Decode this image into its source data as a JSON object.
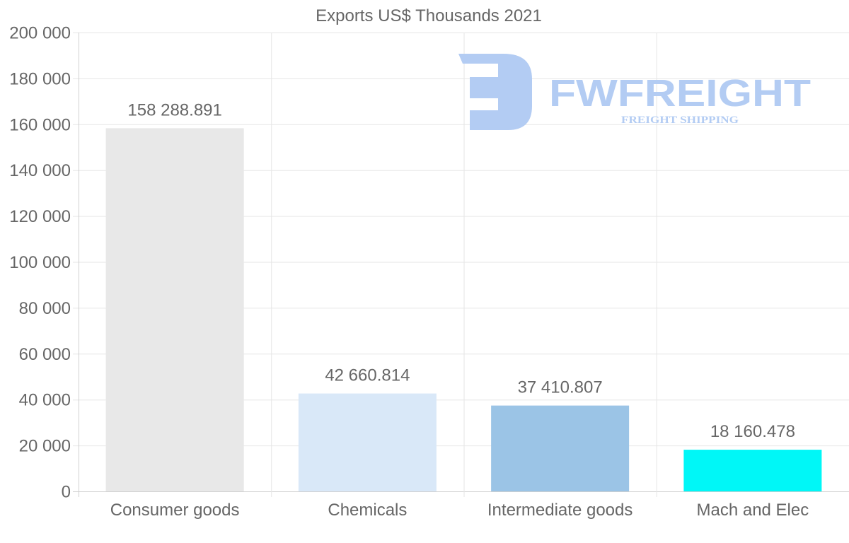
{
  "chart_data": {
    "type": "bar",
    "title": "Exports US$ Thousands 2021",
    "xlabel": "",
    "ylabel": "",
    "categories": [
      "Consumer goods",
      "Chemicals",
      "Intermediate goods",
      "Mach and Elec"
    ],
    "values": [
      158288.891,
      42660.814,
      37410.807,
      18160.478
    ],
    "data_labels": [
      "158 288.891",
      "42 660.814",
      "37 410.807",
      "18 160.478"
    ],
    "colors": [
      "#e8e8e8",
      "#d9e8f8",
      "#9bc4e6",
      "#00f7f7"
    ],
    "ylim": [
      0,
      200000
    ],
    "yticks": [
      0,
      20000,
      40000,
      60000,
      80000,
      100000,
      120000,
      140000,
      160000,
      180000,
      200000
    ],
    "ytick_labels": [
      "0",
      "20 000",
      "40 000",
      "60 000",
      "80 000",
      "100 000",
      "120 000",
      "140 000",
      "160 000",
      "180 000",
      "200 000"
    ],
    "grid": true,
    "legend": "none"
  },
  "watermark": {
    "brand": "FWFREIGHT",
    "tagline": "FREIGHT SHIPPING",
    "color": "#b3ccf3"
  }
}
